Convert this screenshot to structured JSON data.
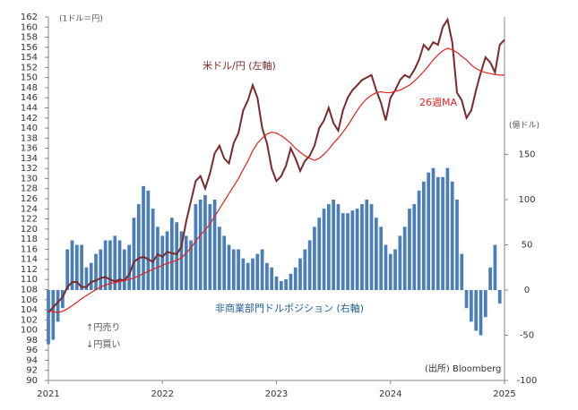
{
  "chart_data": {
    "type": "combo",
    "unit_left": "(1ドル＝円)",
    "unit_right": "(億ドル)",
    "notes": [
      "↑円売り",
      "↓円買い"
    ],
    "source": "(出所) Bloomberg",
    "categories": [
      "2021",
      null,
      null,
      null,
      null,
      null,
      null,
      null,
      null,
      null,
      null,
      null,
      null,
      null,
      null,
      null,
      null,
      null,
      null,
      null,
      null,
      null,
      null,
      null,
      "2022",
      null,
      null,
      null,
      null,
      null,
      null,
      null,
      null,
      null,
      null,
      null,
      null,
      null,
      null,
      null,
      null,
      null,
      null,
      null,
      null,
      null,
      null,
      null,
      "2023",
      null,
      null,
      null,
      null,
      null,
      null,
      null,
      null,
      null,
      null,
      null,
      null,
      null,
      null,
      null,
      null,
      null,
      null,
      null,
      null,
      null,
      null,
      null,
      "2024",
      null,
      null,
      null,
      null,
      null,
      null,
      null,
      null,
      null,
      null,
      null,
      null,
      null,
      null,
      null,
      null,
      null,
      null,
      null,
      null,
      null,
      null,
      null,
      "2025"
    ],
    "ylim": [
      90,
      162
    ],
    "yticks": [
      90,
      92,
      94,
      96,
      98,
      100,
      102,
      104,
      106,
      108,
      110,
      112,
      114,
      116,
      118,
      120,
      122,
      124,
      126,
      128,
      130,
      132,
      134,
      136,
      138,
      140,
      142,
      144,
      146,
      148,
      150,
      152,
      154,
      156,
      158,
      160,
      162
    ],
    "y2lim": [
      -100,
      302
    ],
    "y2ticks": [
      -100,
      -50,
      0,
      50,
      100,
      150
    ],
    "series": [
      {
        "name": "米ドル/円 (左軸)",
        "type": "line",
        "color": "#7b2a2a",
        "values": [
          103.5,
          104.5,
          105.5,
          106.5,
          108.5,
          109.5,
          109.5,
          108.5,
          108.5,
          109.5,
          109.8,
          110.3,
          110.5,
          110.0,
          109.6,
          110.0,
          109.8,
          111.0,
          113.5,
          114.2,
          114.5,
          114.0,
          113.5,
          115.0,
          114.5,
          115.5,
          115.2,
          115.0,
          116.5,
          121.5,
          125.5,
          129.5,
          130.5,
          128.0,
          131.0,
          135.0,
          136.5,
          134.0,
          133.0,
          137.0,
          139.0,
          143.5,
          145.5,
          148.5,
          146.0,
          140.0,
          137.0,
          132.0,
          129.5,
          130.5,
          132.5,
          136.0,
          134.0,
          131.5,
          133.5,
          134.5,
          136.5,
          140.0,
          141.5,
          144.0,
          141.0,
          139.5,
          143.5,
          146.0,
          147.5,
          148.5,
          149.5,
          150.0,
          150.5,
          147.5,
          145.0,
          141.5,
          146.0,
          147.5,
          149.5,
          150.5,
          150.0,
          151.5,
          153.5,
          156.5,
          155.5,
          157.0,
          156.5,
          160.0,
          161.5,
          157.0,
          147.0,
          145.5,
          142.0,
          143.5,
          147.5,
          151.0,
          154.0,
          153.0,
          151.0,
          156.5,
          157.5
        ]
      },
      {
        "name": "26週MA",
        "type": "line",
        "color": "#e8211d",
        "values": [
          103.8,
          103.6,
          103.5,
          103.7,
          104.2,
          104.8,
          105.5,
          106.2,
          106.8,
          107.4,
          108.0,
          108.5,
          108.9,
          109.2,
          109.4,
          109.6,
          109.8,
          110.0,
          110.3,
          110.7,
          111.2,
          111.6,
          112.0,
          112.4,
          112.8,
          113.2,
          113.5,
          113.8,
          114.3,
          115.2,
          116.3,
          117.6,
          118.8,
          119.8,
          121.0,
          122.5,
          124.0,
          125.5,
          127.0,
          128.5,
          130.0,
          131.8,
          133.5,
          135.5,
          137.0,
          138.0,
          138.8,
          139.2,
          139.0,
          138.5,
          137.8,
          137.0,
          136.0,
          135.2,
          134.5,
          134.0,
          133.6,
          134.0,
          134.8,
          135.8,
          137.0,
          138.0,
          139.2,
          140.5,
          142.0,
          143.5,
          144.8,
          145.8,
          146.5,
          147.0,
          147.2,
          147.0,
          147.0,
          147.3,
          147.5,
          148.0,
          148.5,
          149.3,
          150.2,
          151.2,
          152.3,
          153.5,
          154.5,
          155.3,
          155.8,
          155.5,
          155.0,
          154.2,
          153.5,
          152.5,
          151.8,
          151.3,
          151.0,
          150.8,
          150.6,
          150.5,
          150.5
        ]
      },
      {
        "name": "非商業部門ドルポジション (右軸)",
        "type": "bar",
        "axis": "y2",
        "color": "#4a7ebb",
        "values": [
          -60,
          -55,
          -35,
          -20,
          45,
          55,
          50,
          50,
          25,
          30,
          40,
          45,
          55,
          55,
          60,
          55,
          45,
          50,
          80,
          95,
          115,
          110,
          90,
          70,
          60,
          65,
          80,
          75,
          65,
          60,
          55,
          95,
          100,
          105,
          95,
          100,
          70,
          60,
          50,
          45,
          45,
          35,
          30,
          35,
          40,
          45,
          30,
          25,
          15,
          10,
          12,
          18,
          25,
          35,
          45,
          55,
          70,
          80,
          90,
          95,
          100,
          95,
          85,
          85,
          88,
          90,
          95,
          100,
          95,
          80,
          70,
          50,
          40,
          45,
          60,
          70,
          90,
          95,
          110,
          120,
          130,
          135,
          125,
          125,
          135,
          120,
          100,
          40,
          -20,
          -35,
          -45,
          -50,
          -30,
          25,
          50,
          -15,
          null
        ]
      }
    ]
  }
}
